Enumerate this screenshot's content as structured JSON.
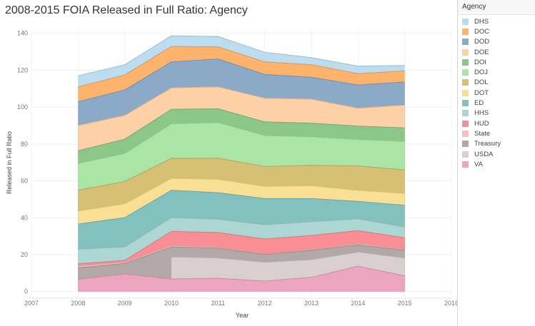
{
  "chart_data": {
    "type": "area",
    "stacked": true,
    "title": "2008-2015 FOIA Released in Full Ratio: Agency",
    "xlabel": "Year",
    "ylabel": "Released in Full Ratio",
    "xlim": [
      2007,
      2016
    ],
    "ylim": [
      0,
      140
    ],
    "x_ticks": [
      "2007",
      "2008",
      "2009",
      "2010",
      "2011",
      "2012",
      "2013",
      "2014",
      "2015",
      "2016"
    ],
    "y_ticks": [
      "0",
      "20",
      "40",
      "60",
      "80",
      "100",
      "120",
      "140"
    ],
    "x": [
      2008,
      2009,
      2010,
      2011,
      2012,
      2013,
      2014,
      2015
    ],
    "legend_title": "Agency",
    "legend_position": "right",
    "series": [
      {
        "name": "DHS",
        "color": "#bcdcf0",
        "values": [
          6.0,
          5.6,
          5.8,
          5.6,
          5.2,
          3.8,
          4.1,
          3.0
        ]
      },
      {
        "name": "DOC",
        "color": "#fdb36c",
        "values": [
          8.1,
          8.1,
          8.4,
          6.6,
          6.8,
          6.8,
          6.1,
          6.0
        ]
      },
      {
        "name": "DOD",
        "color": "#8aaac8",
        "values": [
          12.9,
          13.8,
          14.1,
          15.1,
          12.9,
          11.9,
          12.6,
          12.5
        ]
      },
      {
        "name": "DOE",
        "color": "#fdd0a5",
        "values": [
          13.6,
          12.9,
          11.6,
          11.9,
          12.8,
          13.0,
          9.7,
          12.4
        ]
      },
      {
        "name": "DOI",
        "color": "#8cc78a",
        "values": [
          6.9,
          7.7,
          7.8,
          7.5,
          7.4,
          7.4,
          7.2,
          7.3
        ]
      },
      {
        "name": "DOJ",
        "color": "#abe5a5",
        "values": [
          14.6,
          15.2,
          18.8,
          19.3,
          16.8,
          15.5,
          14.4,
          15.5
        ]
      },
      {
        "name": "DOL",
        "color": "#d5c074",
        "values": [
          11.2,
          12.1,
          10.8,
          11.4,
          10.7,
          11.0,
          13.2,
          12.7
        ]
      },
      {
        "name": "DOT",
        "color": "#f8df93",
        "values": [
          7.1,
          7.5,
          6.5,
          7.3,
          6.7,
          7.0,
          6.0,
          6.4
        ]
      },
      {
        "name": "ED",
        "color": "#82c1bd",
        "values": [
          13.6,
          15.9,
          14.8,
          14.4,
          14.2,
          12.5,
          9.5,
          11.8
        ]
      },
      {
        "name": "HHS",
        "color": "#acd6d3",
        "values": [
          8.0,
          7.3,
          7.5,
          7.2,
          7.7,
          7.5,
          6.4,
          5.8
        ]
      },
      {
        "name": "HUD",
        "color": "#f98f94",
        "values": [
          1.1,
          1.0,
          7.7,
          8.0,
          8.0,
          7.7,
          7.1,
          6.5
        ]
      },
      {
        "name": "State",
        "color": "#fdbcbc",
        "values": [
          1.0,
          0.7,
          0.7,
          0.5,
          0.4,
          0.4,
          0.6,
          0.4
        ]
      },
      {
        "name": "Treasury",
        "color": "#b1a8a7",
        "values": [
          6.3,
          5.7,
          5.4,
          5.3,
          4.2,
          5.0,
          3.9,
          4.1
        ]
      },
      {
        "name": "USDA",
        "color": "#d8cfce",
        "values": [
          null,
          null,
          12.0,
          11.0,
          10.2,
          9.6,
          7.7,
          9.7
        ]
      },
      {
        "name": "VA",
        "color": "#eca5bf",
        "values": [
          6.6,
          9.5,
          6.8,
          7.2,
          5.7,
          7.7,
          13.7,
          8.5
        ]
      }
    ]
  }
}
